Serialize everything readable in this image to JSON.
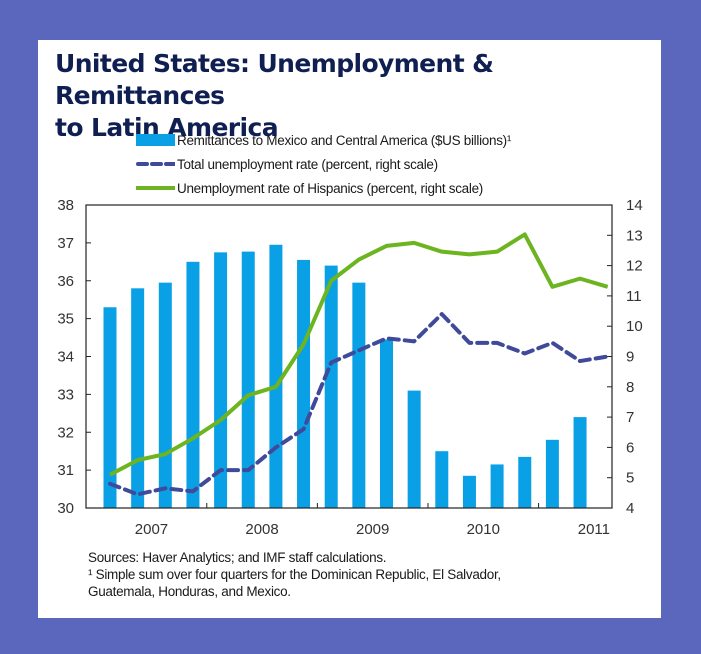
{
  "colors": {
    "background": "#5a67bd",
    "title": "#0f1f52",
    "bars": "#0aa0e6",
    "total_unemployment": "#3f4a9a",
    "hispanic_unemployment": "#6cb521"
  },
  "title_line1": "United States: Unemployment & Remittances",
  "title_line2": "to Latin America",
  "legend": [
    {
      "label": "Remittances to Mexico and Central America ($US billions)¹",
      "type": "bar"
    },
    {
      "label": "Total unemployment rate (percent, right scale)",
      "type": "dashed-line"
    },
    {
      "label": "Unemployment rate of Hispanics (percent, right scale)",
      "type": "solid-line"
    }
  ],
  "notes": {
    "sources": "Sources: Haver Analytics; and IMF staff calculations.",
    "footnote_line1": "¹ Simple sum over four quarters for the Dominican Republic, El Salvador,",
    "footnote_line2": "Guatemala, Honduras, and Mexico."
  },
  "chart_data": {
    "type": "bar+line",
    "title": "United States: Unemployment & Remittances to Latin America",
    "xlabel": "",
    "ylabel_left": "",
    "ylabel_right": "",
    "categories": [
      "2007Q1",
      "2007Q2",
      "2007Q3",
      "2007Q4",
      "2008Q1",
      "2008Q2",
      "2008Q3",
      "2008Q4",
      "2009Q1",
      "2009Q2",
      "2009Q3",
      "2009Q4",
      "2010Q1",
      "2010Q2",
      "2010Q3",
      "2010Q4",
      "2011Q1",
      "2011Q2",
      "2011Q3"
    ],
    "x_tick_labels": [
      "2007",
      "2008",
      "2009",
      "2010",
      "2011"
    ],
    "y_left": {
      "min": 30,
      "max": 38,
      "ticks": [
        30,
        31,
        32,
        33,
        34,
        35,
        36,
        37,
        38
      ]
    },
    "y_right": {
      "min": 4,
      "max": 14,
      "ticks": [
        4,
        5,
        6,
        7,
        8,
        9,
        10,
        11,
        12,
        13,
        14
      ]
    },
    "grid": false,
    "legend_position": "top",
    "series": [
      {
        "name": "Remittances to Mexico and Central America ($US billions)¹",
        "type": "bar",
        "axis": "left",
        "values": [
          35.3,
          35.8,
          35.95,
          36.5,
          36.75,
          36.77,
          36.95,
          36.55,
          36.4,
          35.95,
          34.45,
          33.1,
          31.5,
          30.85,
          31.15,
          31.35,
          31.8,
          32.4,
          null
        ]
      },
      {
        "name": "Total unemployment rate (percent, right scale)",
        "type": "line-dashed",
        "axis": "right",
        "values": [
          4.8,
          4.45,
          4.65,
          4.55,
          5.25,
          5.25,
          6.0,
          6.6,
          8.8,
          9.2,
          9.6,
          9.5,
          10.4,
          9.45,
          9.45,
          9.1,
          9.45,
          8.85,
          9.0
        ]
      },
      {
        "name": "Unemployment rate of Hispanics (percent, right scale)",
        "type": "line",
        "axis": "right",
        "values": [
          5.1,
          5.58,
          5.78,
          6.3,
          6.9,
          7.72,
          8.0,
          9.4,
          11.5,
          12.2,
          12.65,
          12.75,
          12.46,
          12.37,
          12.46,
          13.03,
          11.3,
          11.57,
          11.3
        ]
      }
    ]
  }
}
